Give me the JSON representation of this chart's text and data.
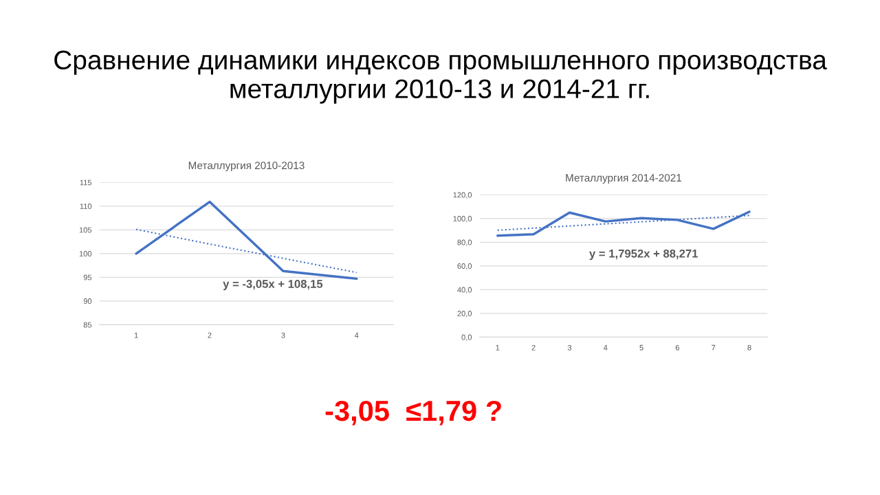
{
  "chart_data": [
    {
      "type": "line",
      "title": "Металлургия 2010-2013",
      "categories": [
        "1",
        "2",
        "3",
        "4"
      ],
      "series": [
        {
          "color": "#4472c4",
          "values": [
            100.0,
            110.9,
            96.3,
            94.7
          ]
        },
        {
          "type": "line",
          "color": "#4472c4",
          "line_style": "dotted",
          "values": [
            105.1,
            102.0,
            99.0,
            96.0
          ]
        }
      ],
      "ylim": [
        85,
        115
      ],
      "yticks": [
        85,
        90,
        95,
        100,
        105,
        110,
        115
      ],
      "grid": "y",
      "annotations": [
        "y = -3,05x + 108,15",
        "Сравнение динамики индексов промышленного производства металлургии 2010-13 и 2014-21 гг."
      ]
    },
    {
      "type": "line",
      "title": "Металлургия 2014-2021",
      "categories": [
        "1",
        "2",
        "3",
        "4",
        "5",
        "6",
        "7",
        "8"
      ],
      "series": [
        {
          "color": "#4472c4",
          "values": [
            85.5,
            86.7,
            105.0,
            97.5,
            100.3,
            98.8,
            91.3,
            105.7
          ]
        },
        {
          "type": "line",
          "color": "#4472c4",
          "line_style": "dotted",
          "values": [
            90.1,
            91.9,
            93.7,
            95.5,
            97.2,
            99.0,
            100.8,
            102.6
          ]
        }
      ],
      "ylim": [
        0,
        120
      ],
      "yticks": [
        {
          "value": 0,
          "label": "0,0"
        },
        {
          "value": 20,
          "label": "20,0"
        },
        {
          "value": 40,
          "label": "40,0"
        },
        {
          "value": 60,
          "label": "60,0"
        },
        {
          "value": 80,
          "label": "80,0"
        },
        {
          "value": 100,
          "label": "100,0"
        },
        {
          "value": 120,
          "label": "120,0"
        }
      ],
      "grid": "y",
      "annotations": [
        "y = 1,7952x + 88,271",
        "-3,05  ≤1,79 ?"
      ]
    }
  ]
}
